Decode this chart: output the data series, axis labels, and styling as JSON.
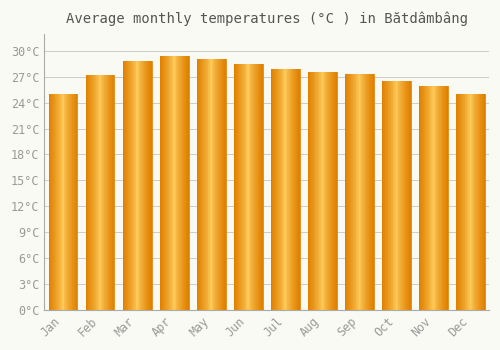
{
  "title": "Average monthly temperatures (°C ) in Bătdâmbâng",
  "months": [
    "Jan",
    "Feb",
    "Mar",
    "Apr",
    "May",
    "Jun",
    "Jul",
    "Aug",
    "Sep",
    "Oct",
    "Nov",
    "Dec"
  ],
  "temperatures": [
    25.0,
    27.2,
    28.8,
    29.4,
    29.1,
    28.5,
    27.9,
    27.6,
    27.3,
    26.5,
    25.9,
    25.0
  ],
  "bar_color_main": "#FFA500",
  "bar_color_light": "#FFD060",
  "bar_color_dark": "#E08000",
  "ylim": [
    0,
    32
  ],
  "yticks": [
    0,
    3,
    6,
    9,
    12,
    15,
    18,
    21,
    24,
    27,
    30
  ],
  "background_color": "#FAFAF5",
  "grid_color": "#CCCCCC",
  "title_fontsize": 10,
  "tick_fontsize": 8.5,
  "axis_color": "#999999",
  "spine_color": "#AAAAAA"
}
